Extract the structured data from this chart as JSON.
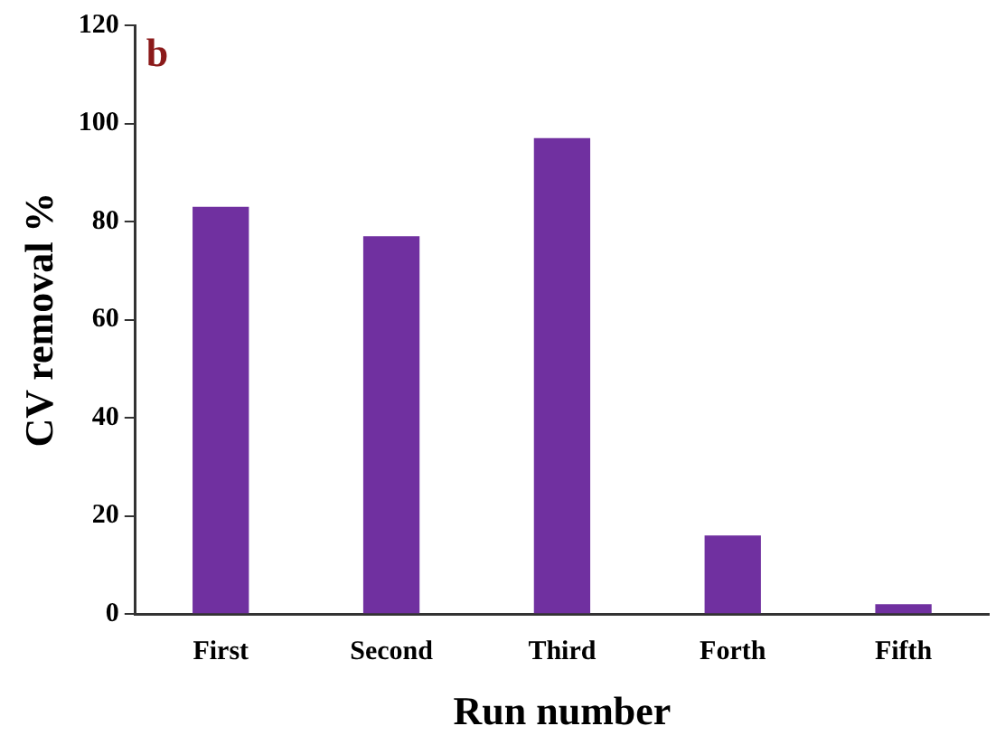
{
  "chart_data": {
    "type": "bar",
    "title": "b",
    "xlabel": "Run number",
    "ylabel": "CV removal %",
    "categories": [
      "First",
      "Second",
      "Third",
      "Forth",
      "Fifth"
    ],
    "values": [
      83,
      77,
      97,
      16,
      2
    ],
    "color": "#7030a0",
    "ylim": [
      0,
      120
    ],
    "yticks": [
      0,
      20,
      40,
      60,
      80,
      100,
      120
    ],
    "grid": false,
    "legend": false
  }
}
